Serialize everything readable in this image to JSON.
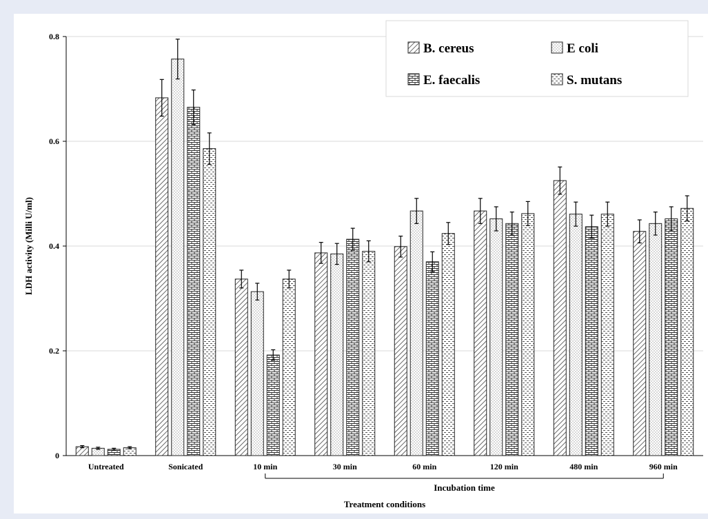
{
  "chart_data": {
    "type": "bar",
    "title": "",
    "xlabel": "Treatment conditions",
    "ylabel": "LDH activity (Milli U/ml)",
    "group_label": "Incubation time",
    "categories": [
      "Untreated",
      "Sonicated",
      "10 min",
      "30 min",
      "60 min",
      "120 min",
      "480 min",
      "960 min"
    ],
    "ylim": [
      0,
      0.8
    ],
    "yticks": [
      "0",
      "0.2",
      "0.4",
      "0.6",
      "0.8"
    ],
    "grid": true,
    "legend_position": "top-right",
    "series": [
      {
        "name": "B. cereus",
        "pattern": "diagonal",
        "values": [
          0.017,
          0.683,
          0.337,
          0.387,
          0.399,
          0.467,
          0.525,
          0.428
        ],
        "errors": [
          0.002,
          0.035,
          0.017,
          0.02,
          0.02,
          0.024,
          0.026,
          0.022
        ]
      },
      {
        "name": "E coli",
        "pattern": "dots",
        "values": [
          0.014,
          0.757,
          0.313,
          0.385,
          0.467,
          0.452,
          0.461,
          0.443
        ],
        "errors": [
          0.002,
          0.038,
          0.016,
          0.02,
          0.024,
          0.023,
          0.023,
          0.022
        ]
      },
      {
        "name": "E. faecalis",
        "pattern": "brick",
        "values": [
          0.012,
          0.665,
          0.192,
          0.413,
          0.37,
          0.443,
          0.437,
          0.452
        ],
        "errors": [
          0.002,
          0.033,
          0.01,
          0.021,
          0.019,
          0.022,
          0.022,
          0.023
        ]
      },
      {
        "name": "S. mutans",
        "pattern": "dashes",
        "values": [
          0.015,
          0.586,
          0.337,
          0.39,
          0.424,
          0.462,
          0.461,
          0.472
        ],
        "errors": [
          0.002,
          0.03,
          0.017,
          0.02,
          0.021,
          0.023,
          0.023,
          0.024
        ]
      }
    ]
  }
}
